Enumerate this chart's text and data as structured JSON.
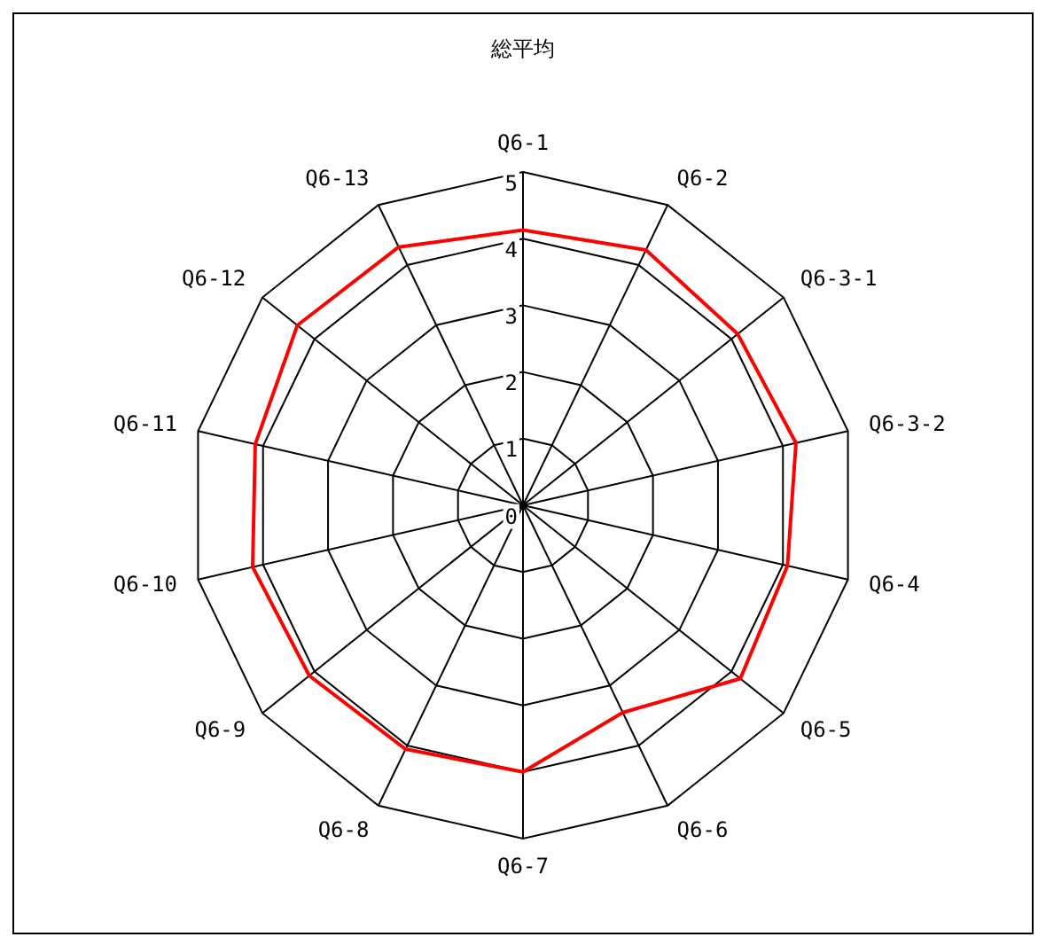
{
  "chart_data": {
    "type": "radar",
    "title": "総平均",
    "categories": [
      "Q6-1",
      "Q6-2",
      "Q6-3-1",
      "Q6-3-2",
      "Q6-4",
      "Q6-5",
      "Q6-6",
      "Q6-7",
      "Q6-8",
      "Q6-9",
      "Q6-10",
      "Q6-11",
      "Q6-12",
      "Q6-13"
    ],
    "series": [
      {
        "color": "#ff0000",
        "values": [
          4.13,
          4.25,
          4.12,
          4.2,
          4.07,
          4.17,
          3.45,
          4.0,
          4.06,
          4.1,
          4.16,
          4.12,
          4.33,
          4.3
        ]
      }
    ],
    "ylim": [
      0,
      5
    ],
    "yticks": [
      0,
      1,
      2,
      3,
      4,
      5
    ],
    "grid": true
  }
}
